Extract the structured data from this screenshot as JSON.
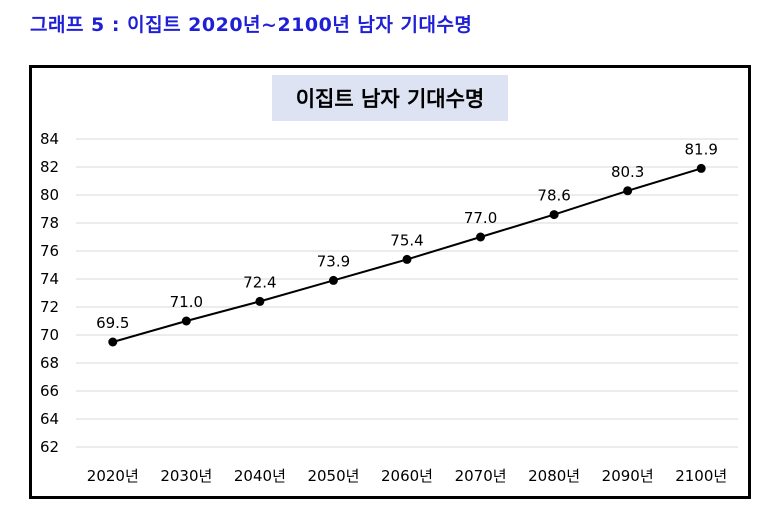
{
  "page": {
    "heading": "그래프 5 : 이집트 2020년~2100년 남자 기대수명"
  },
  "colors": {
    "heading": "#1f1fd6",
    "title_box": "#dde3f2",
    "gridline": "#d9d9d9",
    "series_line": "#000000",
    "frame": "#000000"
  },
  "chart_data": {
    "type": "line",
    "title": "이집트 남자 기대수명",
    "categories": [
      "2020년",
      "2030년",
      "2040년",
      "2050년",
      "2060년",
      "2070년",
      "2080년",
      "2090년",
      "2100년"
    ],
    "series": [
      {
        "values": [
          69.5,
          71.0,
          72.4,
          73.9,
          75.4,
          77.0,
          78.6,
          80.3,
          81.9
        ],
        "labels": [
          "69.5",
          "71.0",
          "72.4",
          "73.9",
          "75.4",
          "77.0",
          "78.6",
          "80.3",
          "81.9"
        ]
      }
    ],
    "ylim": [
      62,
      84
    ],
    "yticks": [
      "62",
      "64",
      "66",
      "68",
      "70",
      "72",
      "74",
      "76",
      "78",
      "80",
      "82",
      "84"
    ],
    "xlabel": "",
    "ylabel": "",
    "grid": true,
    "legend": "none",
    "marker": "filled-circle"
  }
}
